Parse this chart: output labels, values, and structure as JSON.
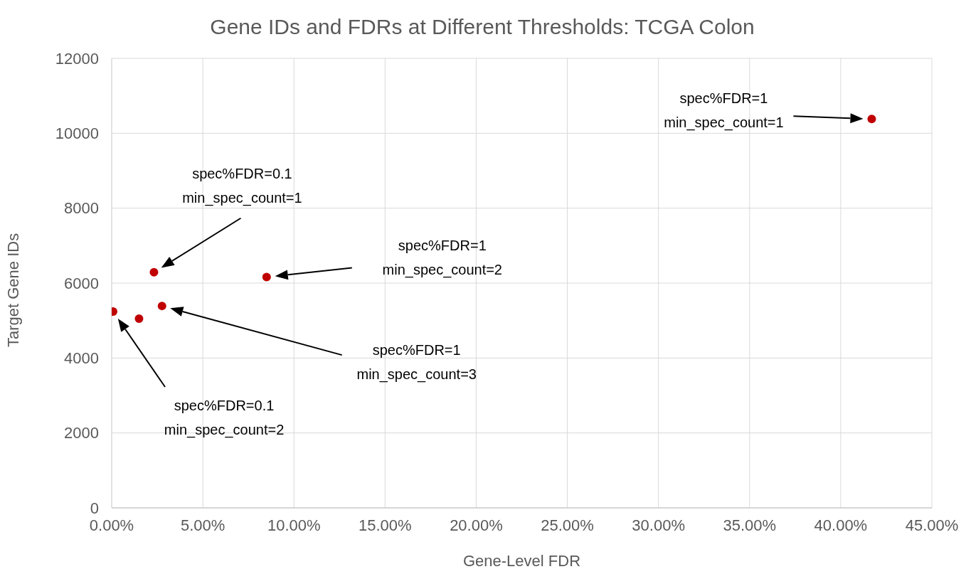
{
  "chart_data": {
    "type": "scatter",
    "title": "Gene IDs and FDRs at Different Thresholds: TCGA Colon",
    "xlabel": "Gene-Level FDR",
    "ylabel": "Target Gene IDs",
    "x": [
      0.08,
      1.5,
      2.32,
      2.76,
      8.5,
      41.7
    ],
    "series": [
      {
        "color": "#c00000",
        "values": [
          5240,
          5050,
          6290,
          5390,
          6160,
          10380
        ]
      }
    ],
    "xlim": [
      0,
      45
    ],
    "xticks": [
      {
        "value": 0,
        "label": "0.00%"
      },
      {
        "value": 5,
        "label": "5.00%"
      },
      {
        "value": 10,
        "label": "10.00%"
      },
      {
        "value": 15,
        "label": "15.00%"
      },
      {
        "value": 20,
        "label": "20.00%"
      },
      {
        "value": 25,
        "label": "25.00%"
      },
      {
        "value": 30,
        "label": "30.00%"
      },
      {
        "value": 35,
        "label": "35.00%"
      },
      {
        "value": 40,
        "label": "40.00%"
      },
      {
        "value": 45,
        "label": "45.00%"
      }
    ],
    "ylim": [
      0,
      12000
    ],
    "yticks": [
      0,
      2000,
      4000,
      6000,
      8000,
      10000,
      12000
    ],
    "grid": true,
    "marker": "circle",
    "legend": false,
    "annotations": [
      "spec%FDR=0.1\nmin_spec_count=2",
      "spec%FDR=0.1\nmin_spec_count=1",
      "spec%FDR=1\nmin_spec_count=3",
      "spec%FDR=1\nmin_spec_count=2",
      "spec%FDR=1\nmin_spec_count=1"
    ]
  }
}
